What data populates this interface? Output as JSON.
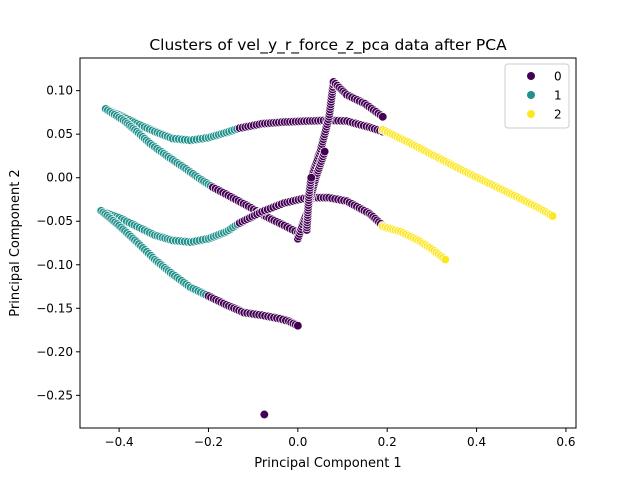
{
  "chart_data": {
    "type": "scatter",
    "title": "Clusters of vel_y_r_force_z_pca data after PCA",
    "xlabel": "Principal Component 1",
    "ylabel": "Principal Component 2",
    "xlim": [
      -0.4875,
      0.6225
    ],
    "ylim": [
      -0.2875,
      0.1375
    ],
    "xticks": [
      -0.4,
      -0.2,
      0.0,
      0.2,
      0.4,
      0.6
    ],
    "xtick_labels": [
      "−0.4",
      "−0.2",
      "0.0",
      "0.2",
      "0.4",
      "0.6"
    ],
    "yticks": [
      -0.25,
      -0.2,
      -0.15,
      -0.1,
      -0.05,
      0.0,
      0.05,
      0.1
    ],
    "ytick_labels": [
      "−0.25",
      "−0.20",
      "−0.15",
      "−0.10",
      "−0.05",
      "0.00",
      "0.05",
      "0.10"
    ],
    "grid": false,
    "legend": {
      "placement": "top-right",
      "entries": [
        {
          "label": "0",
          "color": "#440154"
        },
        {
          "label": "1",
          "color": "#21918c"
        },
        {
          "label": "2",
          "color": "#fde725"
        }
      ]
    },
    "series": [
      {
        "cluster": "1",
        "color": "#21918c",
        "segments": [
          [
            [
              -0.43,
              0.079
            ],
            [
              -0.4,
              0.072
            ],
            [
              -0.36,
              0.062
            ],
            [
              -0.32,
              0.053
            ],
            [
              -0.28,
              0.045
            ],
            [
              -0.24,
              0.043
            ],
            [
              -0.2,
              0.046
            ],
            [
              -0.16,
              0.052
            ],
            [
              -0.13,
              0.057
            ]
          ],
          [
            [
              -0.43,
              0.079
            ],
            [
              -0.39,
              0.066
            ],
            [
              -0.36,
              0.053
            ],
            [
              -0.33,
              0.039
            ],
            [
              -0.29,
              0.024
            ],
            [
              -0.25,
              0.01
            ],
            [
              -0.22,
              -0.001
            ],
            [
              -0.19,
              -0.011
            ]
          ],
          [
            [
              -0.44,
              -0.038
            ],
            [
              -0.4,
              -0.046
            ],
            [
              -0.36,
              -0.056
            ],
            [
              -0.32,
              -0.066
            ],
            [
              -0.28,
              -0.072
            ],
            [
              -0.24,
              -0.074
            ],
            [
              -0.2,
              -0.07
            ],
            [
              -0.16,
              -0.062
            ],
            [
              -0.13,
              -0.052
            ]
          ],
          [
            [
              -0.44,
              -0.038
            ],
            [
              -0.4,
              -0.055
            ],
            [
              -0.36,
              -0.074
            ],
            [
              -0.32,
              -0.094
            ],
            [
              -0.28,
              -0.111
            ],
            [
              -0.24,
              -0.126
            ],
            [
              -0.2,
              -0.136
            ]
          ]
        ]
      },
      {
        "cluster": "0",
        "color": "#440154",
        "segments": [
          [
            [
              -0.13,
              0.057
            ],
            [
              -0.08,
              0.062
            ],
            [
              -0.03,
              0.064
            ],
            [
              0.02,
              0.065
            ],
            [
              0.07,
              0.066
            ],
            [
              0.11,
              0.065
            ],
            [
              0.16,
              0.058
            ],
            [
              0.19,
              0.053
            ]
          ],
          [
            [
              -0.19,
              -0.011
            ],
            [
              -0.15,
              -0.022
            ],
            [
              -0.11,
              -0.033
            ],
            [
              -0.07,
              -0.045
            ],
            [
              -0.03,
              -0.055
            ],
            [
              0.0,
              -0.063
            ]
          ],
          [
            [
              -0.13,
              -0.052
            ],
            [
              -0.08,
              -0.039
            ],
            [
              -0.03,
              -0.029
            ],
            [
              0.02,
              -0.023
            ],
            [
              0.07,
              -0.023
            ],
            [
              0.11,
              -0.027
            ],
            [
              0.16,
              -0.041
            ],
            [
              0.19,
              -0.055
            ]
          ],
          [
            [
              -0.2,
              -0.136
            ],
            [
              -0.16,
              -0.146
            ],
            [
              -0.12,
              -0.155
            ],
            [
              -0.08,
              -0.158
            ],
            [
              -0.04,
              -0.162
            ],
            [
              -0.02,
              -0.165
            ],
            [
              0.0,
              -0.17
            ]
          ],
          [
            [
              0.02,
              -0.05
            ],
            [
              0.03,
              0.0
            ],
            [
              0.05,
              0.03
            ],
            [
              0.07,
              0.07
            ],
            [
              0.08,
              0.11
            ]
          ],
          [
            [
              0.08,
              0.11
            ],
            [
              0.11,
              0.095
            ],
            [
              0.15,
              0.085
            ],
            [
              0.19,
              0.07
            ]
          ],
          [
            [
              0.0,
              -0.07
            ],
            [
              0.02,
              -0.04
            ],
            [
              0.04,
              0.0
            ],
            [
              0.06,
              0.03
            ]
          ],
          [
            [
              0.02,
              -0.06
            ],
            [
              0.025,
              -0.02
            ],
            [
              0.03,
              0.0
            ]
          ],
          [
            [
              -0.075,
              -0.272
            ],
            [
              -0.075,
              -0.272
            ]
          ]
        ]
      },
      {
        "cluster": "2",
        "color": "#fde725",
        "segments": [
          [
            [
              0.19,
              0.055
            ],
            [
              0.25,
              0.04
            ],
            [
              0.31,
              0.024
            ],
            [
              0.37,
              0.008
            ],
            [
              0.43,
              -0.007
            ],
            [
              0.49,
              -0.022
            ],
            [
              0.54,
              -0.035
            ],
            [
              0.57,
              -0.044
            ]
          ],
          [
            [
              0.19,
              -0.056
            ],
            [
              0.23,
              -0.062
            ],
            [
              0.27,
              -0.072
            ],
            [
              0.3,
              -0.082
            ],
            [
              0.33,
              -0.094
            ]
          ]
        ]
      }
    ]
  }
}
